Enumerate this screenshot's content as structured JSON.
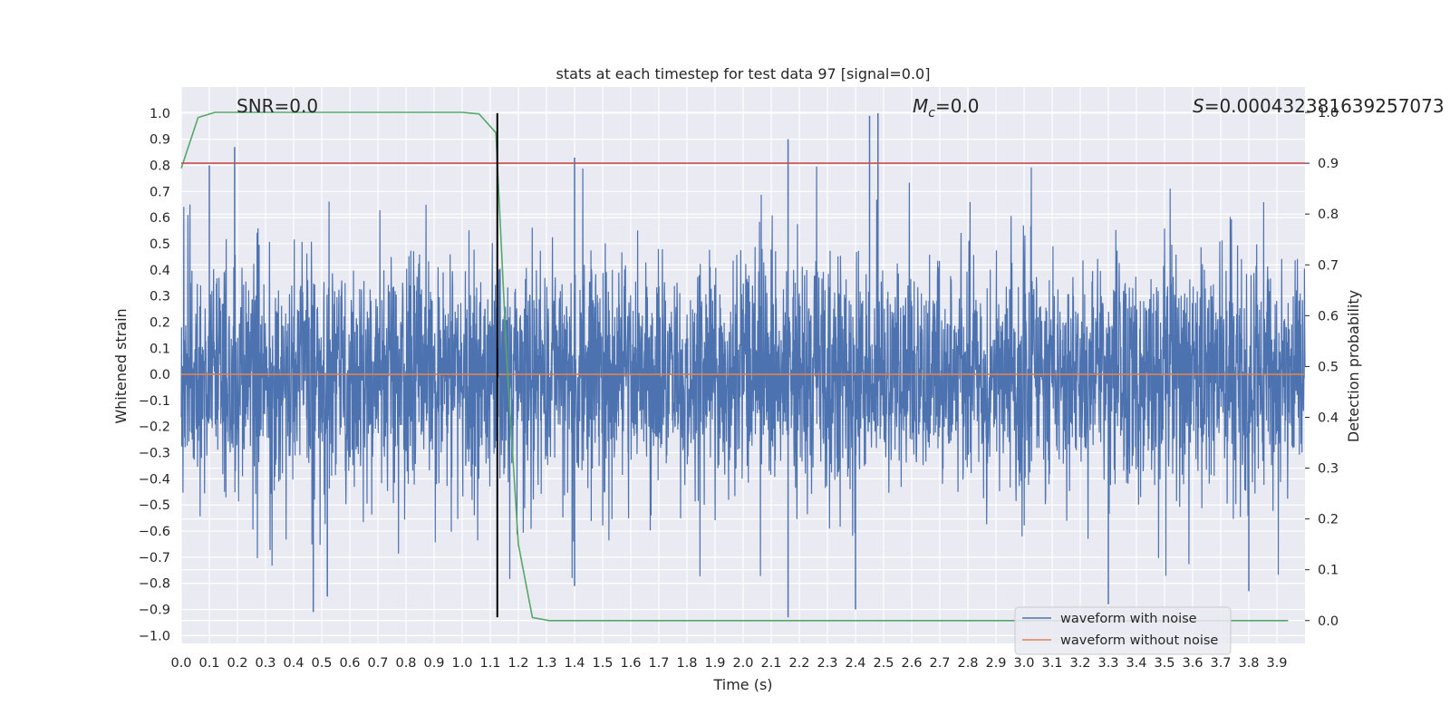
{
  "chart_data": {
    "type": "line",
    "title": "stats at each timestep for test data 97 [signal=0.0]",
    "xlabel": "Time (s)",
    "ylabel_left": "Whitened strain",
    "ylabel_right": "Detection probability",
    "xlim": [
      0.0,
      4.0
    ],
    "ylim_left": [
      -1.03,
      1.1
    ],
    "ylim_right": [
      -0.045,
      1.05
    ],
    "x_ticks": [
      "0.0",
      "0.1",
      "0.2",
      "0.3",
      "0.4",
      "0.5",
      "0.6",
      "0.7",
      "0.8",
      "0.9",
      "1.0",
      "1.1",
      "1.2",
      "1.3",
      "1.4",
      "1.5",
      "1.6",
      "1.7",
      "1.8",
      "1.9",
      "2.0",
      "2.1",
      "2.2",
      "2.3",
      "2.4",
      "2.5",
      "2.6",
      "2.7",
      "2.8",
      "2.9",
      "3.0",
      "3.1",
      "3.2",
      "3.3",
      "3.4",
      "3.5",
      "3.6",
      "3.7",
      "3.8",
      "3.9"
    ],
    "y_ticks_left": [
      "−1.0",
      "−0.9",
      "−0.8",
      "−0.7",
      "−0.6",
      "−0.5",
      "−0.4",
      "−0.3",
      "−0.2",
      "−0.1",
      "0.0",
      "0.1",
      "0.2",
      "0.3",
      "0.4",
      "0.5",
      "0.6",
      "0.7",
      "0.8",
      "0.9",
      "1.0"
    ],
    "y_ticks_right": [
      "0.0",
      "0.1",
      "0.2",
      "0.3",
      "0.4",
      "0.5",
      "0.6",
      "0.7",
      "0.8",
      "0.9",
      "1.0"
    ],
    "grid": true,
    "legend_position": "bottom-right",
    "annotations": {
      "snr": "SNR=0.0",
      "mc_symbol": "M",
      "mc_sub": "c",
      "mc_value": "=0.0",
      "s_symbol": "S",
      "s_value": "=0.000432381639257073"
    },
    "series": [
      {
        "name": "waveform with noise",
        "axis": "left",
        "color": "#4c72b0",
        "style": "noise",
        "x_range": [
          0.0,
          4.0
        ],
        "envelope_typical": [
          -0.45,
          0.45
        ],
        "extremes": [
          [
            0.1,
            0.8
          ],
          [
            0.19,
            0.87
          ],
          [
            0.47,
            -0.91
          ],
          [
            0.52,
            -0.85
          ],
          [
            1.4,
            0.83
          ],
          [
            1.4,
            -0.81
          ],
          [
            2.16,
            0.9
          ],
          [
            2.16,
            -0.93
          ],
          [
            2.45,
            0.99
          ],
          [
            2.48,
            1.0
          ],
          [
            2.4,
            -0.9
          ],
          [
            3.3,
            -0.88
          ],
          [
            3.8,
            -0.83
          ]
        ]
      },
      {
        "name": "waveform without noise",
        "axis": "left",
        "color": "#dd8452",
        "x": [
          0.0,
          4.0
        ],
        "y": [
          0.0,
          0.0
        ]
      },
      {
        "axis": "right",
        "color": "#55a868",
        "x": [
          0.0,
          0.06,
          0.12,
          0.5,
          1.0,
          1.06,
          1.12,
          1.16,
          1.2,
          1.25,
          1.31,
          1.5,
          2.0,
          3.0,
          3.94
        ],
        "y": [
          0.89,
          0.99,
          1.0,
          1.0,
          1.0,
          0.997,
          0.96,
          0.5,
          0.15,
          0.006,
          0.0,
          0.0,
          0.0,
          0.0,
          0.0
        ]
      },
      {
        "axis": "right",
        "color": "#c44e52",
        "x": [
          0.0,
          4.0
        ],
        "y": [
          0.9,
          0.9
        ]
      }
    ],
    "marker_line": {
      "color": "#000000",
      "x": 1.125,
      "y_range": [
        -0.93,
        1.0
      ]
    }
  }
}
